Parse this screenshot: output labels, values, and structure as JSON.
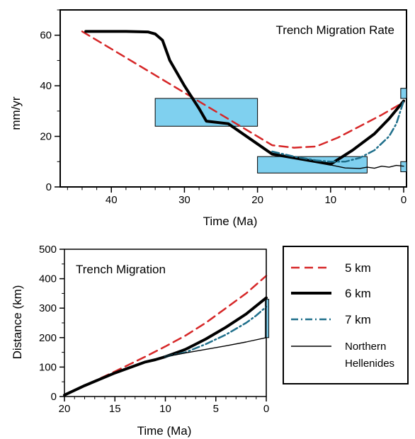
{
  "colors": {
    "red": "#d62728",
    "black": "#000000",
    "teal": "#1f6f8b",
    "box_fill": "#7fd0ef",
    "box_stroke": "#000000"
  },
  "chart_data": [
    {
      "type": "line",
      "title": "Trench Migration Rate",
      "xlabel": "Time (Ma)",
      "ylabel": "mm/yr",
      "xlim": [
        47,
        0
      ],
      "ylim": [
        0,
        70
      ],
      "xticks": [
        40,
        30,
        20,
        10,
        0
      ],
      "yticks": [
        0,
        20,
        40,
        60
      ],
      "series": [
        {
          "style": "red-dashed",
          "x": [
            44,
            18,
            15,
            12,
            9,
            6,
            3,
            0
          ],
          "y": [
            61.5,
            16.5,
            15.5,
            16,
            19.5,
            24,
            28.5,
            33.5
          ]
        },
        {
          "style": "black-thick",
          "x": [
            43.5,
            41,
            38,
            35,
            34,
            33,
            32,
            30,
            28,
            27,
            24,
            20,
            18,
            15,
            12,
            10,
            7,
            4,
            2,
            0
          ],
          "y": [
            61.5,
            61.5,
            61.5,
            61.3,
            60.5,
            58,
            50,
            40,
            31,
            26,
            25,
            17,
            13,
            11.5,
            10,
            9,
            14.5,
            21,
            27,
            34
          ]
        },
        {
          "style": "teal-dashdot",
          "x": [
            18,
            15,
            12,
            10,
            8,
            6,
            4,
            2,
            1,
            0
          ],
          "y": [
            14,
            12,
            10.5,
            10,
            10,
            11.5,
            14.5,
            20,
            25,
            34
          ]
        },
        {
          "style": "black-thin",
          "x": [
            10,
            8,
            6,
            5,
            4,
            3,
            2,
            1,
            0
          ],
          "y": [
            8.7,
            7.5,
            7.3,
            7.8,
            7.4,
            8.2,
            7.8,
            8.5,
            8.2
          ]
        }
      ],
      "boxes": [
        {
          "x0": 34,
          "x1": 20,
          "y0": 24,
          "y1": 35
        },
        {
          "x0": 20,
          "x1": 5,
          "y0": 5.5,
          "y1": 12
        },
        {
          "x0": 0.4,
          "x1": -0.4,
          "y0": 35,
          "y1": 39
        },
        {
          "x0": 0.4,
          "x1": -0.4,
          "y0": 6,
          "y1": 10
        }
      ]
    },
    {
      "type": "line",
      "title": "Trench Migration",
      "xlabel": "Time (Ma)",
      "ylabel": "Distance (km)",
      "xlim": [
        20,
        0
      ],
      "ylim": [
        0,
        500
      ],
      "xticks": [
        20,
        15,
        10,
        5,
        0
      ],
      "yticks": [
        0,
        100,
        200,
        300,
        400,
        500
      ],
      "series": [
        {
          "name": "5 km",
          "style": "red-dashed",
          "x": [
            20,
            18,
            15,
            12,
            10,
            8,
            6,
            4,
            2,
            0
          ],
          "y": [
            5,
            37,
            85,
            135,
            170,
            207,
            250,
            300,
            350,
            410
          ]
        },
        {
          "name": "6 km",
          "style": "black-thick",
          "x": [
            20,
            18,
            15,
            12,
            11,
            10,
            8,
            6,
            4,
            2,
            0
          ],
          "y": [
            5,
            37,
            80,
            117,
            125,
            135,
            160,
            195,
            235,
            280,
            335
          ]
        },
        {
          "name": "7 km",
          "style": "teal-dashdot",
          "x": [
            10,
            8,
            6,
            4,
            2,
            1,
            0
          ],
          "y": [
            135,
            150,
            178,
            210,
            250,
            275,
            305
          ]
        },
        {
          "name": "Northern Hellenides",
          "style": "black-thin",
          "x": [
            10,
            8,
            6,
            4,
            2,
            0
          ],
          "y": [
            135,
            148,
            160,
            172,
            185,
            200
          ]
        }
      ],
      "boxes": [
        {
          "x0": 0.1,
          "x1": -0.25,
          "y0": 200,
          "y1": 330
        }
      ],
      "legend_position": "right"
    }
  ]
}
